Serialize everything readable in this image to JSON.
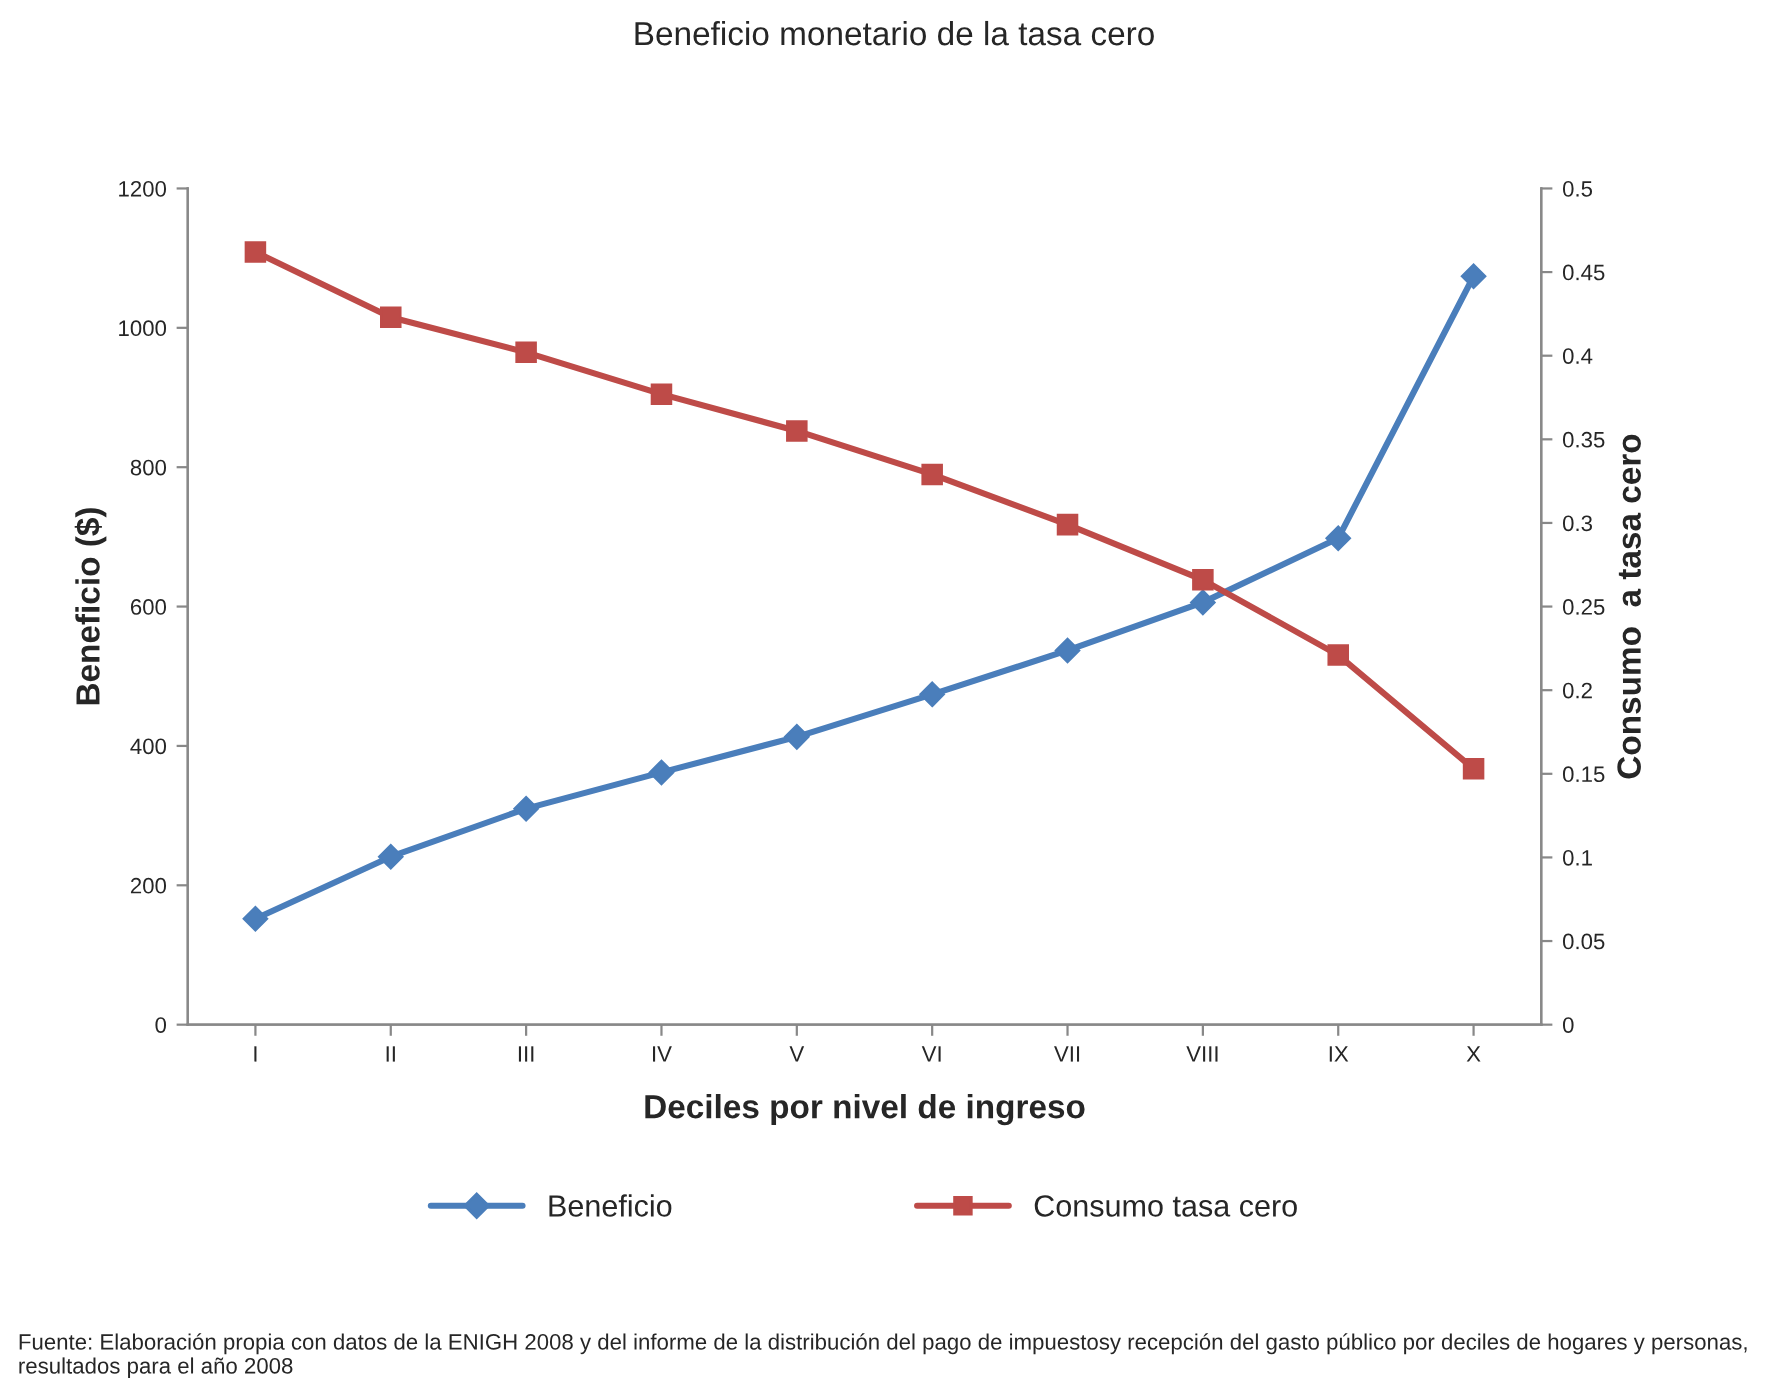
{
  "chart_data": {
    "type": "line",
    "title": "Beneficio monetario de la tasa cero",
    "xlabel": "Deciles por nivel de ingreso",
    "ylabel": "Beneficio ($)",
    "y2label": "Consumo  a tasa cero",
    "categories": [
      "I",
      "II",
      "III",
      "IV",
      "V",
      "VI",
      "VII",
      "VIII",
      "IX",
      "X"
    ],
    "series": [
      {
        "name": "Beneficio",
        "color": "#4a7ebb",
        "marker": "diamond",
        "values": [
          152,
          241,
          310,
          362,
          413,
          474,
          537,
          606,
          698,
          1074
        ]
      },
      {
        "name": "Consumo tasa cero",
        "color": "#be4b48",
        "marker": "square",
        "axis": "y2",
        "values": [
          0.462,
          0.423,
          0.402,
          0.377,
          0.355,
          0.329,
          0.299,
          0.266,
          0.221,
          0.153
        ]
      }
    ],
    "ylim": [
      0,
      1200
    ],
    "yticks": [
      0,
      200,
      400,
      600,
      800,
      1000,
      1200
    ],
    "y2lim": [
      0,
      0.5
    ],
    "y2ticks": [
      0,
      0.05,
      0.1,
      0.15,
      0.2,
      0.25,
      0.3,
      0.35,
      0.4,
      0.45,
      0.5
    ],
    "grid": false,
    "legend": "bottom",
    "line_style": "solid",
    "annotations": [
      "Fuente: Elaboración propia con datos de la ENIGH 2008 y del informe de la distribución del pago de impuestosy recepción del gasto público por deciles de hogares y personas, resultados para el año 2008"
    ]
  }
}
